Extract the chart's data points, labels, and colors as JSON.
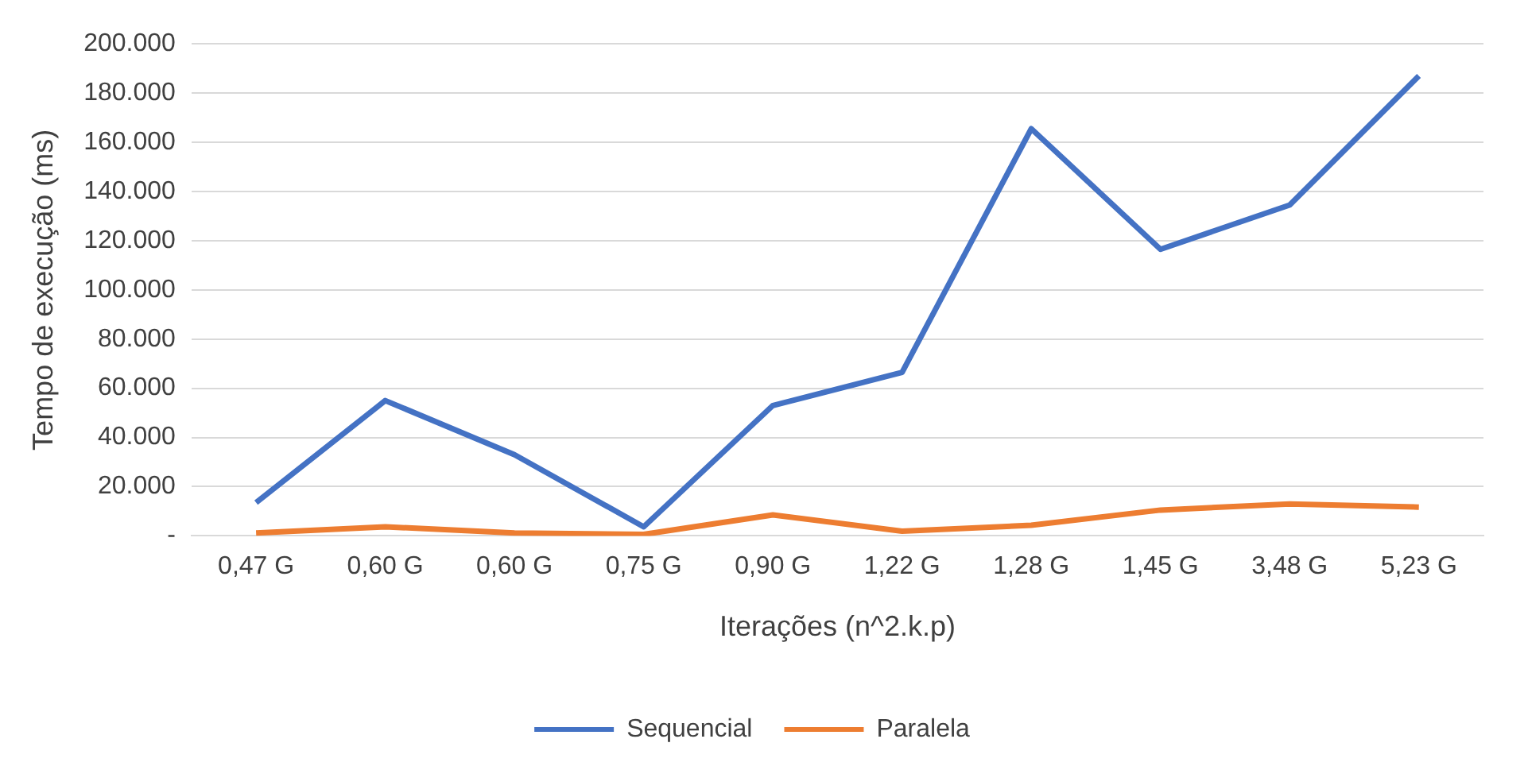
{
  "chart_data": {
    "type": "line",
    "xlabel": "Iterações (n^2.k.p)",
    "ylabel": "Tempo de execução (ms)",
    "categories": [
      "0,47 G",
      "0,60 G",
      "0,60 G",
      "0,75 G",
      "0,90 G",
      "1,22 G",
      "1,28 G",
      "1,45 G",
      "3,48 G",
      "5,23 G"
    ],
    "series": [
      {
        "name": "Sequencial",
        "color": "#4472c4",
        "values": [
          13500,
          55000,
          33000,
          3700,
          53000,
          66500,
          165500,
          116500,
          134500,
          187000
        ]
      },
      {
        "name": "Paralela",
        "color": "#ed7d31",
        "values": [
          1200,
          3700,
          1200,
          600,
          8500,
          1900,
          4300,
          10500,
          13000,
          11700
        ]
      }
    ],
    "ylim": [
      0,
      200000
    ],
    "yticks": [
      {
        "value": 0,
        "label": "-"
      },
      {
        "value": 20000,
        "label": "20.000"
      },
      {
        "value": 40000,
        "label": "40.000"
      },
      {
        "value": 60000,
        "label": "60.000"
      },
      {
        "value": 80000,
        "label": "80.000"
      },
      {
        "value": 100000,
        "label": "100.000"
      },
      {
        "value": 120000,
        "label": "120.000"
      },
      {
        "value": 140000,
        "label": "140.000"
      },
      {
        "value": 160000,
        "label": "160.000"
      },
      {
        "value": 180000,
        "label": "180.000"
      },
      {
        "value": 200000,
        "label": "200.000"
      }
    ],
    "grid": "y",
    "legend": "bottom",
    "marker": "none",
    "line_style": "solid"
  }
}
